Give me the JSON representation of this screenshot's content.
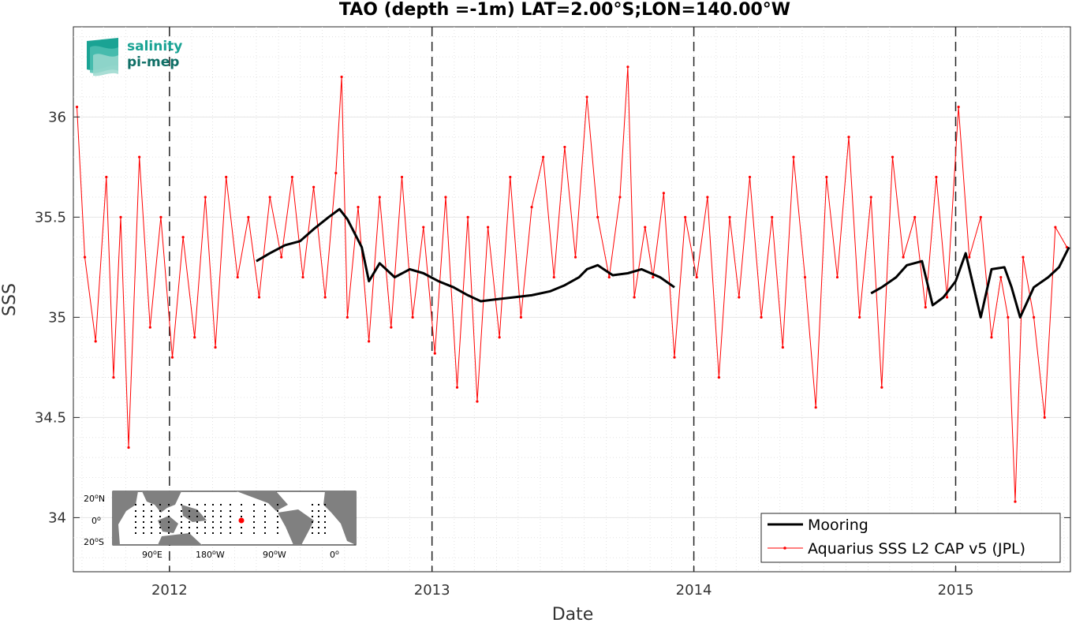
{
  "chart_data": {
    "type": "line",
    "title": "TAO (depth =-1m) LAT=2.00°S;LON=140.00°W",
    "xlabel": "Date",
    "ylabel": "SSS",
    "xlim": [
      "2011-08-20",
      "2015-06-10"
    ],
    "ylim": [
      33.73,
      36.45
    ],
    "x_ticks": [
      "2012",
      "2013",
      "2014",
      "2015"
    ],
    "y_ticks": [
      "34",
      "34.5",
      "35",
      "35.5",
      "36"
    ],
    "grid": true,
    "year_marker_lines": [
      "2012-01-01",
      "2013-01-01",
      "2014-01-01",
      "2015-01-01"
    ],
    "legend_position": "bottom-right",
    "series": [
      {
        "name": "Mooring",
        "color": "#000000",
        "segments": [
          {
            "dates": [
              "2012-05-01",
              "2012-05-20",
              "2012-06-10",
              "2012-07-01",
              "2012-07-20",
              "2012-08-10",
              "2012-08-25",
              "2012-09-05",
              "2012-09-25",
              "2012-10-05",
              "2012-10-20",
              "2012-11-10",
              "2012-12-01",
              "2012-12-20",
              "2013-01-10",
              "2013-01-31",
              "2013-02-20",
              "2013-03-10",
              "2013-04-01",
              "2013-04-25",
              "2013-05-20",
              "2013-06-15",
              "2013-07-05",
              "2013-07-25",
              "2013-08-05",
              "2013-08-20",
              "2013-09-10",
              "2013-10-01",
              "2013-10-20",
              "2013-11-15",
              "2013-12-05"
            ],
            "values": [
              35.28,
              35.32,
              35.36,
              35.38,
              35.44,
              35.5,
              35.54,
              35.49,
              35.35,
              35.18,
              35.27,
              35.2,
              35.24,
              35.22,
              35.18,
              35.15,
              35.11,
              35.08,
              35.09,
              35.1,
              35.11,
              35.13,
              35.16,
              35.2,
              35.24,
              35.26,
              35.21,
              35.22,
              35.24,
              35.2,
              35.15
            ]
          },
          {
            "dates": [
              "2014-09-05",
              "2014-09-20",
              "2014-10-10",
              "2014-10-25",
              "2014-11-15",
              "2014-11-30",
              "2014-12-15",
              "2015-01-01",
              "2015-01-15",
              "2015-02-05",
              "2015-02-20",
              "2015-03-10",
              "2015-03-20",
              "2015-04-01",
              "2015-04-20",
              "2015-05-10",
              "2015-05-25",
              "2015-06-08"
            ],
            "values": [
              35.12,
              35.15,
              35.2,
              35.26,
              35.28,
              35.06,
              35.1,
              35.18,
              35.32,
              35.0,
              35.24,
              35.25,
              35.15,
              35.0,
              35.15,
              35.2,
              35.25,
              35.35
            ]
          }
        ]
      },
      {
        "name": "Aquarius SSS L2 CAP v5 (JPL)",
        "color": "#ff0000",
        "dates": [
          "2011-08-25",
          "2011-09-05",
          "2011-09-20",
          "2011-10-05",
          "2011-10-15",
          "2011-10-25",
          "2011-11-05",
          "2011-11-20",
          "2011-12-05",
          "2011-12-20",
          "2012-01-05",
          "2012-01-20",
          "2012-02-05",
          "2012-02-20",
          "2012-03-05",
          "2012-03-20",
          "2012-04-05",
          "2012-04-20",
          "2012-05-05",
          "2012-05-20",
          "2012-06-05",
          "2012-06-20",
          "2012-07-05",
          "2012-07-20",
          "2012-08-05",
          "2012-08-20",
          "2012-08-28",
          "2012-09-05",
          "2012-09-20",
          "2012-10-05",
          "2012-10-20",
          "2012-11-05",
          "2012-11-20",
          "2012-12-05",
          "2012-12-20",
          "2013-01-05",
          "2013-01-20",
          "2013-02-05",
          "2013-02-20",
          "2013-03-05",
          "2013-03-20",
          "2013-04-05",
          "2013-04-20",
          "2013-05-05",
          "2013-05-20",
          "2013-06-05",
          "2013-06-20",
          "2013-07-05",
          "2013-07-20",
          "2013-08-05",
          "2013-08-20",
          "2013-09-05",
          "2013-09-20",
          "2013-10-01",
          "2013-10-10",
          "2013-10-25",
          "2013-11-05",
          "2013-11-20",
          "2013-12-05",
          "2013-12-20",
          "2014-01-05",
          "2014-01-20",
          "2014-02-05",
          "2014-02-20",
          "2014-03-05",
          "2014-03-20",
          "2014-04-05",
          "2014-04-20",
          "2014-05-05",
          "2014-05-20",
          "2014-06-05",
          "2014-06-20",
          "2014-07-05",
          "2014-07-20",
          "2014-08-05",
          "2014-08-20",
          "2014-09-05",
          "2014-09-20",
          "2014-10-05",
          "2014-10-20",
          "2014-11-05",
          "2014-11-20",
          "2014-12-05",
          "2014-12-20",
          "2015-01-05",
          "2015-01-20",
          "2015-02-05",
          "2015-02-20",
          "2015-03-05",
          "2015-03-15",
          "2015-03-25",
          "2015-04-05",
          "2015-04-20",
          "2015-05-05",
          "2015-05-20",
          "2015-06-05"
        ],
        "values": [
          36.05,
          35.3,
          34.88,
          35.7,
          34.7,
          35.5,
          34.35,
          35.8,
          34.95,
          35.5,
          34.8,
          35.4,
          34.9,
          35.6,
          34.85,
          35.7,
          35.2,
          35.5,
          35.1,
          35.6,
          35.3,
          35.7,
          35.2,
          35.65,
          35.1,
          35.72,
          36.2,
          35.0,
          35.55,
          34.88,
          35.6,
          34.95,
          35.7,
          35.0,
          35.45,
          34.82,
          35.6,
          34.65,
          35.5,
          34.58,
          35.45,
          34.9,
          35.7,
          35.0,
          35.55,
          35.8,
          35.2,
          35.85,
          35.3,
          36.1,
          35.5,
          35.2,
          35.6,
          36.25,
          35.1,
          35.45,
          35.2,
          35.62,
          34.8,
          35.5,
          35.2,
          35.6,
          34.7,
          35.5,
          35.1,
          35.7,
          35.0,
          35.5,
          34.85,
          35.8,
          35.2,
          34.55,
          35.7,
          35.2,
          35.9,
          35.0,
          35.6,
          34.65,
          35.8,
          35.3,
          35.5,
          35.05,
          35.7,
          35.1,
          36.05,
          35.3,
          35.5,
          34.9,
          35.2,
          35.0,
          34.08,
          35.3,
          35.0,
          34.5,
          35.45,
          35.35
        ]
      }
    ]
  },
  "logo": {
    "line1": "salinity",
    "line2": "pi-mep",
    "color1": "#1aa394",
    "color2": "#0f6f66"
  },
  "inset_map": {
    "lat_labels": [
      "20",
      "N",
      "0",
      "20",
      "S"
    ],
    "deg": "o",
    "lon_labels": [
      "90",
      "E",
      "180",
      "W",
      "90",
      "W",
      "0"
    ],
    "land_color": "#808080"
  }
}
